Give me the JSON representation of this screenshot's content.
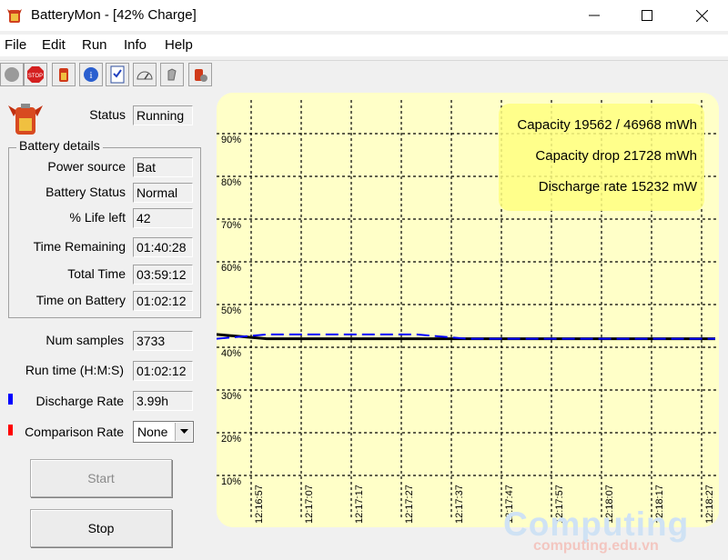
{
  "window": {
    "title": "BatteryMon - [42% Charge]"
  },
  "menu": [
    "File",
    "Edit",
    "Run",
    "Info",
    "Help"
  ],
  "toolbar": {
    "icons": [
      "circle-icon",
      "stop-icon",
      "battery-icon",
      "info-icon",
      "checklist-icon",
      "gauge-icon",
      "bell-icon",
      "settings-icon"
    ]
  },
  "status": {
    "label": "Status",
    "value": "Running"
  },
  "battery_details": {
    "title": "Battery details",
    "rows": [
      {
        "label": "Power source",
        "value": "Bat"
      },
      {
        "label": "Battery Status",
        "value": "Normal"
      },
      {
        "label": "% Life left",
        "value": "42"
      },
      {
        "label": "Time Remaining",
        "value": "01:40:28"
      },
      {
        "label": "Total Time",
        "value": "03:59:12"
      },
      {
        "label": "Time on Battery",
        "value": "01:02:12"
      }
    ]
  },
  "stats": [
    {
      "label": "Num samples",
      "value": "3733"
    },
    {
      "label": "Run time (H:M:S)",
      "value": "01:02:12"
    },
    {
      "label": "Discharge Rate",
      "value": "3.99h",
      "marker": "#0000ff"
    },
    {
      "label": "Comparison Rate",
      "value": "None",
      "marker": "#ff0000"
    }
  ],
  "buttons": {
    "start": "Start",
    "stop": "Stop"
  },
  "chart_data": {
    "type": "line",
    "y_ticks": [
      "10%",
      "20%",
      "30%",
      "40%",
      "50%",
      "60%",
      "70%",
      "80%",
      "90%"
    ],
    "x_ticks": [
      "12:16:57",
      "12:17:07",
      "12:17:17",
      "12:17:27",
      "12:17:37",
      "12:17:47",
      "12:17:57",
      "12:18:07",
      "12:18:17",
      "12:18:27"
    ],
    "ylim": [
      0,
      100
    ],
    "grid": true,
    "series": [
      {
        "values": [
          43,
          42,
          42,
          42,
          42,
          42,
          42,
          42,
          42,
          42
        ],
        "color": "#000000",
        "style": "solid"
      },
      {
        "values": [
          42,
          43,
          43,
          43,
          43,
          42,
          42,
          42,
          42,
          42
        ],
        "color": "#0000ff",
        "style": "dashed"
      }
    ],
    "info": [
      "Capacity 19562 / 46968 mWh",
      "Capacity drop 21728 mWh",
      "Discharge rate 15232 mW"
    ],
    "background": "#ffffc8"
  },
  "watermark": {
    "text": "Computing",
    "url": "computing.edu.vn"
  }
}
